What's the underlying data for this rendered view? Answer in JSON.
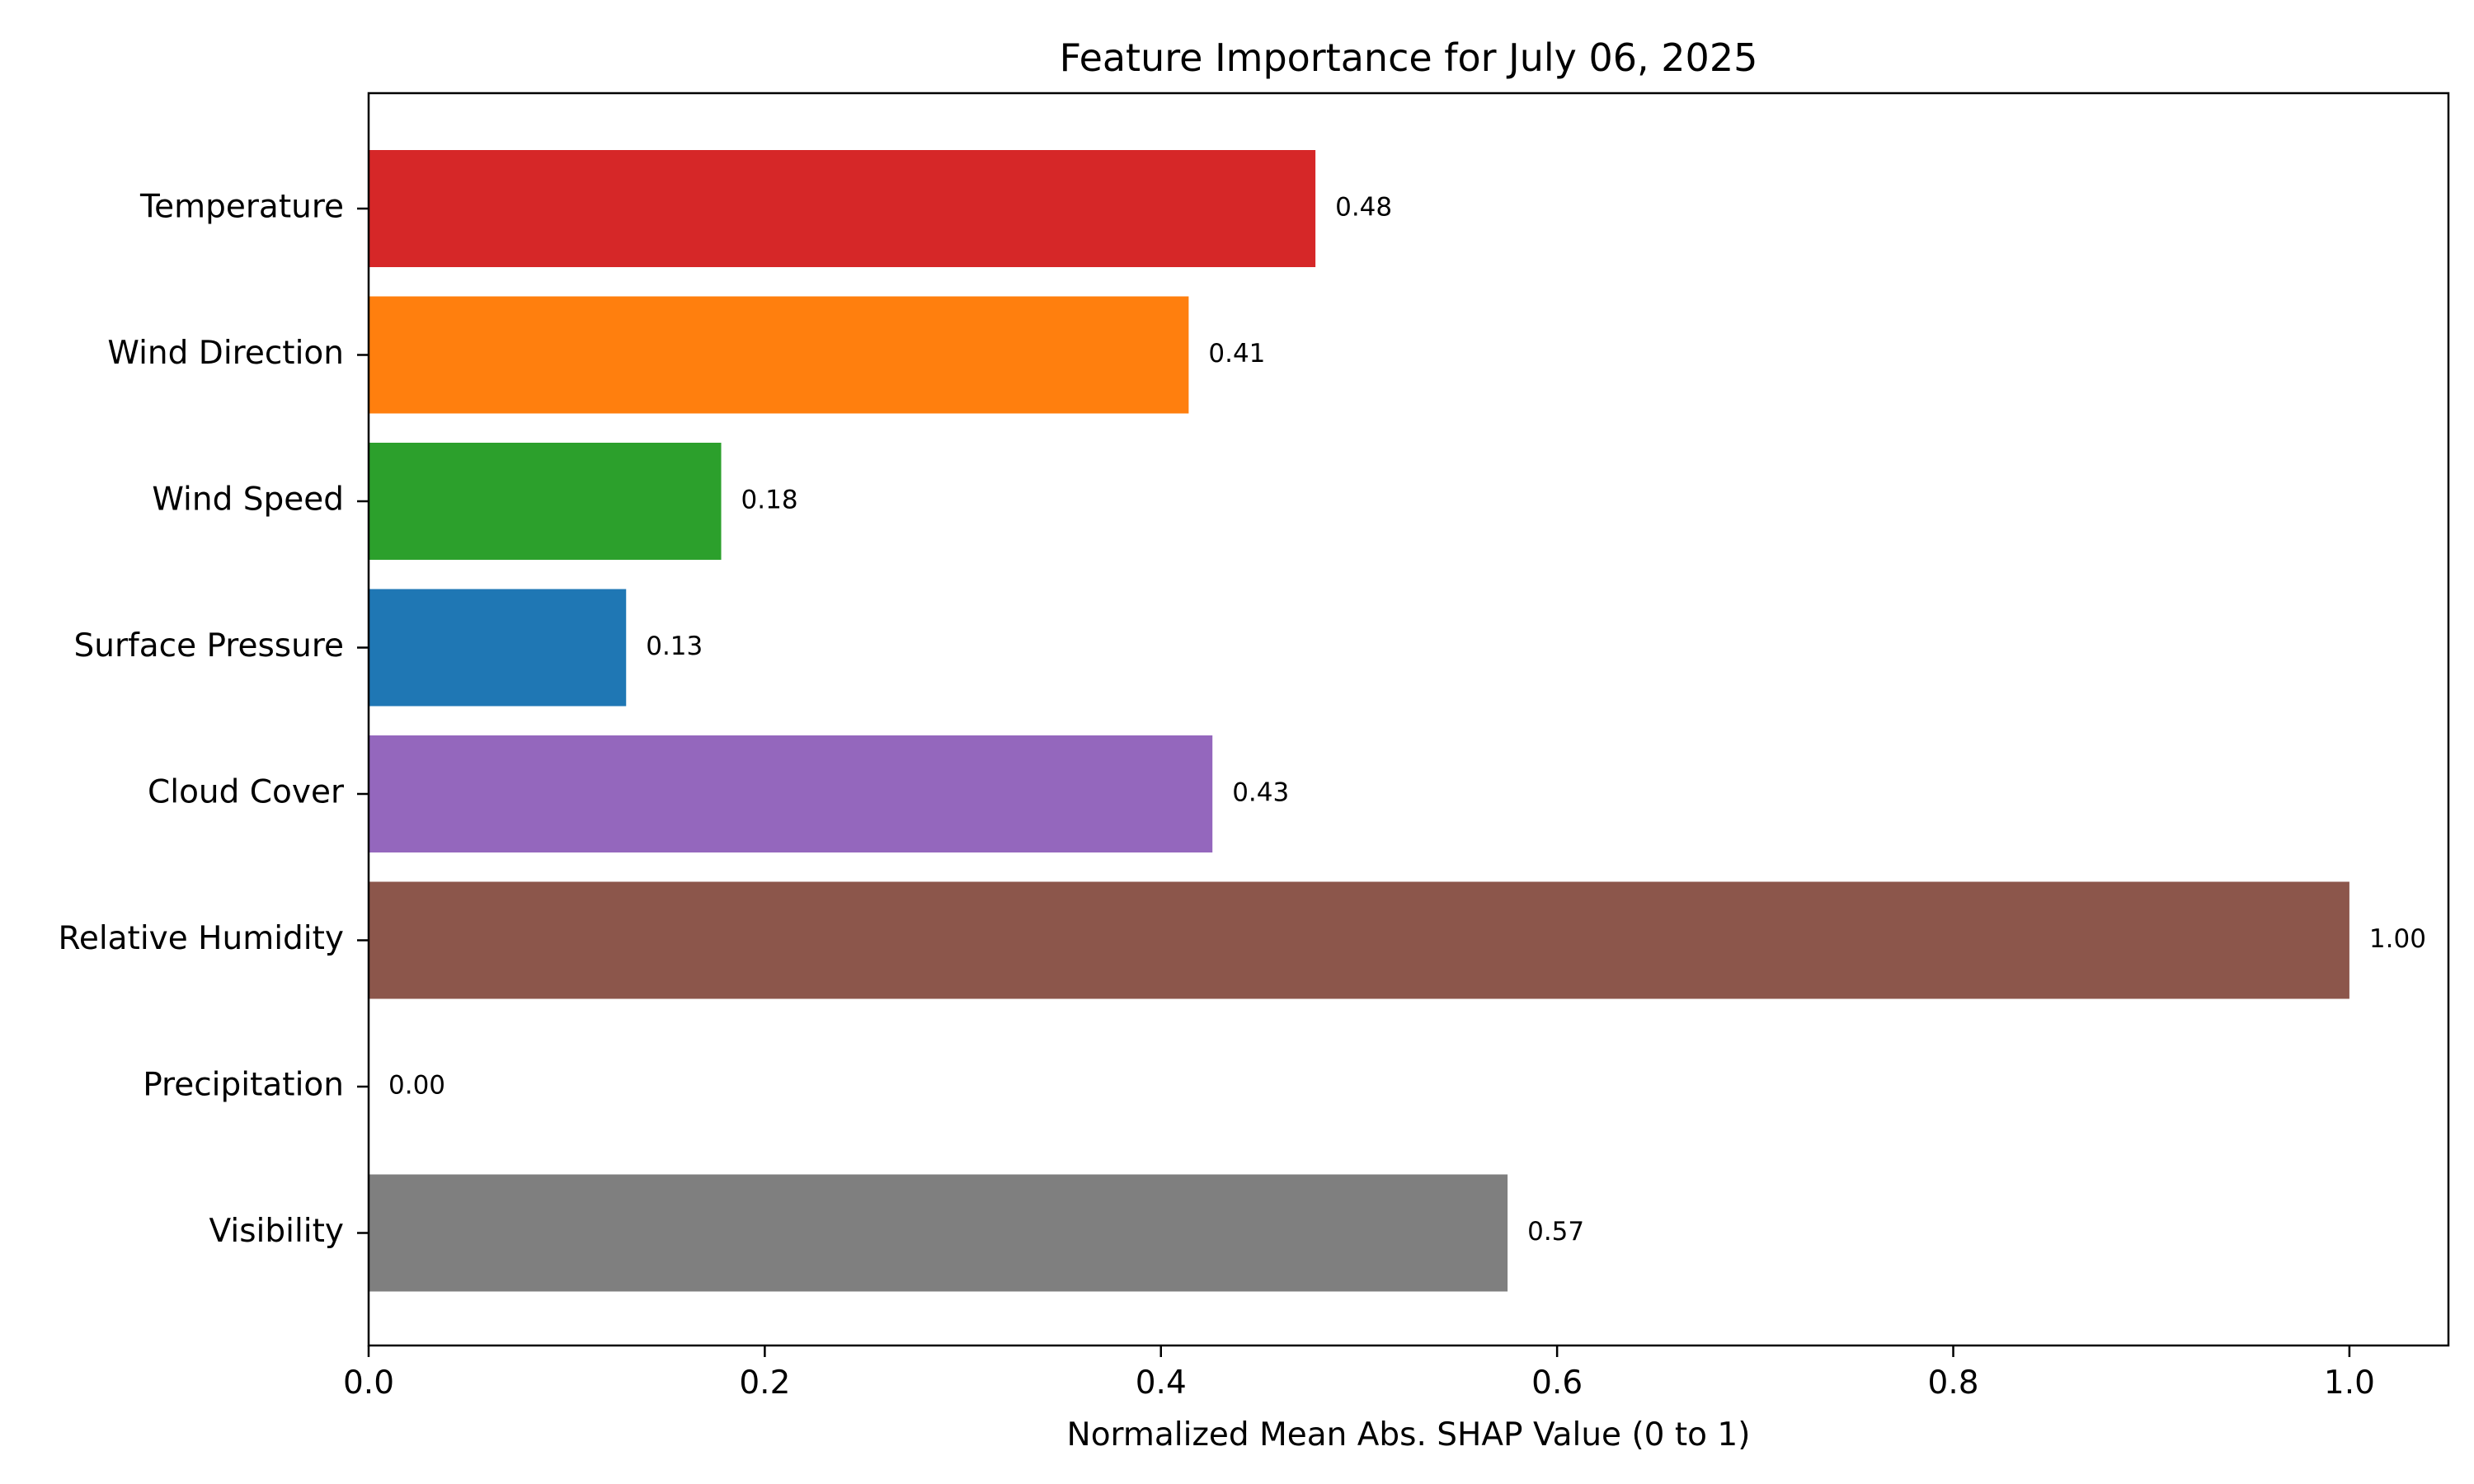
{
  "chart_data": {
    "type": "bar",
    "orientation": "horizontal",
    "title": "Feature Importance for July 06, 2025",
    "xlabel": "Normalized Mean Abs. SHAP Value (0 to 1)",
    "ylabel": "",
    "xlim": [
      0,
      1.05
    ],
    "xticks": [
      0.0,
      0.2,
      0.4,
      0.6,
      0.8,
      1.0
    ],
    "xtick_labels": [
      "0.0",
      "0.2",
      "0.4",
      "0.6",
      "0.8",
      "1.0"
    ],
    "grid": false,
    "categories": [
      "Temperature",
      "Wind Direction",
      "Wind Speed",
      "Surface Pressure",
      "Cloud Cover",
      "Relative Humidity",
      "Precipitation",
      "Visibility"
    ],
    "values": [
      0.478,
      0.414,
      0.178,
      0.13,
      0.426,
      1.0,
      0.0,
      0.575
    ],
    "value_labels": [
      "0.48",
      "0.41",
      "0.18",
      "0.13",
      "0.43",
      "1.00",
      "0.00",
      "0.57"
    ],
    "colors": [
      "#d62728",
      "#ff7f0e",
      "#2ca02c",
      "#1f77b4",
      "#9467bd",
      "#8c564b",
      "#e377c2",
      "#7f7f7f"
    ]
  }
}
